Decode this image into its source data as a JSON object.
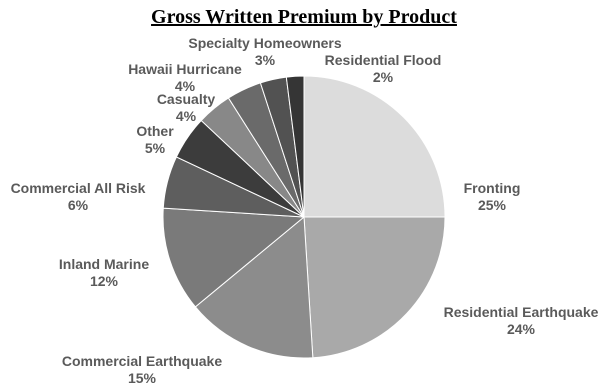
{
  "chart_data": {
    "type": "pie",
    "title": "Gross Written Premium by Product",
    "start_angle_deg": 0,
    "direction": "clockwise",
    "slices": [
      {
        "label": "Fronting",
        "value": 25,
        "pct_label": "25%",
        "color": "#dcdcdc"
      },
      {
        "label": "Residential Earthquake",
        "value": 24,
        "pct_label": "24%",
        "color": "#a9a9a9"
      },
      {
        "label": "Commercial Earthquake",
        "value": 15,
        "pct_label": "15%",
        "color": "#8c8c8c"
      },
      {
        "label": "Inland Marine",
        "value": 12,
        "pct_label": "12%",
        "color": "#7a7a7a"
      },
      {
        "label": "Commercial All Risk",
        "value": 6,
        "pct_label": "6%",
        "color": "#5e5e5e"
      },
      {
        "label": "Other",
        "value": 5,
        "pct_label": "5%",
        "color": "#3c3c3c"
      },
      {
        "label": "Casualty",
        "value": 4,
        "pct_label": "4%",
        "color": "#888888"
      },
      {
        "label": "Hawaii Hurricane",
        "value": 4,
        "pct_label": "4%",
        "color": "#6a6a6a"
      },
      {
        "label": "Specialty Homeowners",
        "value": 3,
        "pct_label": "3%",
        "color": "#525252"
      },
      {
        "label": "Residential Flood",
        "value": 2,
        "pct_label": "2%",
        "color": "#353535"
      }
    ]
  }
}
